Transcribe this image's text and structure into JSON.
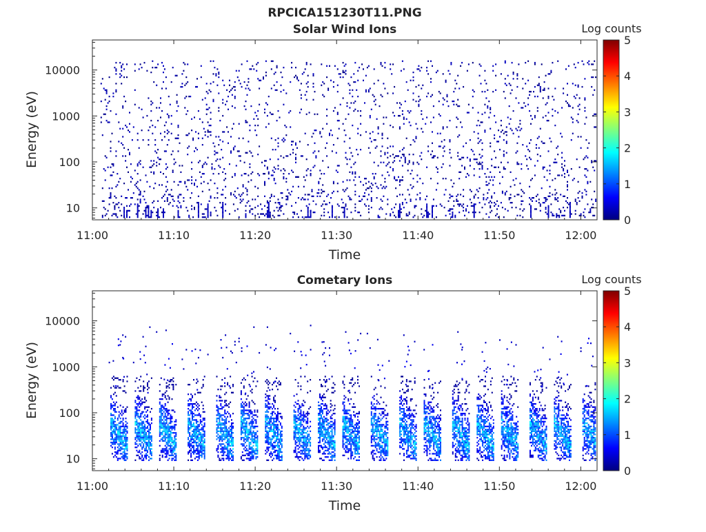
{
  "figure": {
    "title": "RPCICA151230T11.PNG"
  },
  "colorscale": {
    "label": "Log counts",
    "ticks": [
      "0",
      "1",
      "2",
      "3",
      "4",
      "5"
    ],
    "range": [
      0,
      5
    ],
    "colormap": "jet",
    "stops": [
      "#00007f",
      "#0000ff",
      "#007fff",
      "#00ffff",
      "#7fff7f",
      "#ffff00",
      "#ff7f00",
      "#ff0000",
      "#7f0000"
    ]
  },
  "chart_data": [
    {
      "type": "heatmap",
      "title": "Solar Wind Ions",
      "xlabel": "Time",
      "ylabel": "Energy (eV)",
      "yscale": "log",
      "x_tick_labels": [
        "11:00",
        "11:10",
        "11:20",
        "11:30",
        "11:40",
        "11:50",
        "12:00"
      ],
      "y_tick_labels": [
        "10",
        "100",
        "1000",
        "10000"
      ],
      "xlim": [
        "11:00",
        "12:02"
      ],
      "ylim": [
        5.5,
        45000
      ],
      "value_range_log_counts": [
        0,
        1
      ],
      "description_level": "sparse low-count background, mostly log counts 0 to 0.5 across all energies"
    },
    {
      "type": "heatmap",
      "title": "Cometary Ions",
      "xlabel": "Time",
      "ylabel": "Energy (eV)",
      "yscale": "log",
      "x_tick_labels": [
        "11:00",
        "11:10",
        "11:20",
        "11:30",
        "11:40",
        "11:50",
        "12:00"
      ],
      "y_tick_labels": [
        "10",
        "100",
        "1000",
        "10000"
      ],
      "xlim": [
        "11:00",
        "12:02"
      ],
      "ylim": [
        5.5,
        45000
      ],
      "value_range_log_counts": [
        0,
        2
      ],
      "burst_times": [
        "11:03",
        "11:06",
        "11:09",
        "11:12.5",
        "11:16",
        "11:19",
        "11:22",
        "11:25.5",
        "11:28.5",
        "11:31.5",
        "11:35",
        "11:38.5",
        "11:41.5",
        "11:45",
        "11:48",
        "11:51",
        "11:54.5",
        "11:57.5",
        "12:01"
      ],
      "burst_energy_range_eV": [
        10,
        600
      ],
      "burst_peak_log_counts": 1.8
    }
  ]
}
